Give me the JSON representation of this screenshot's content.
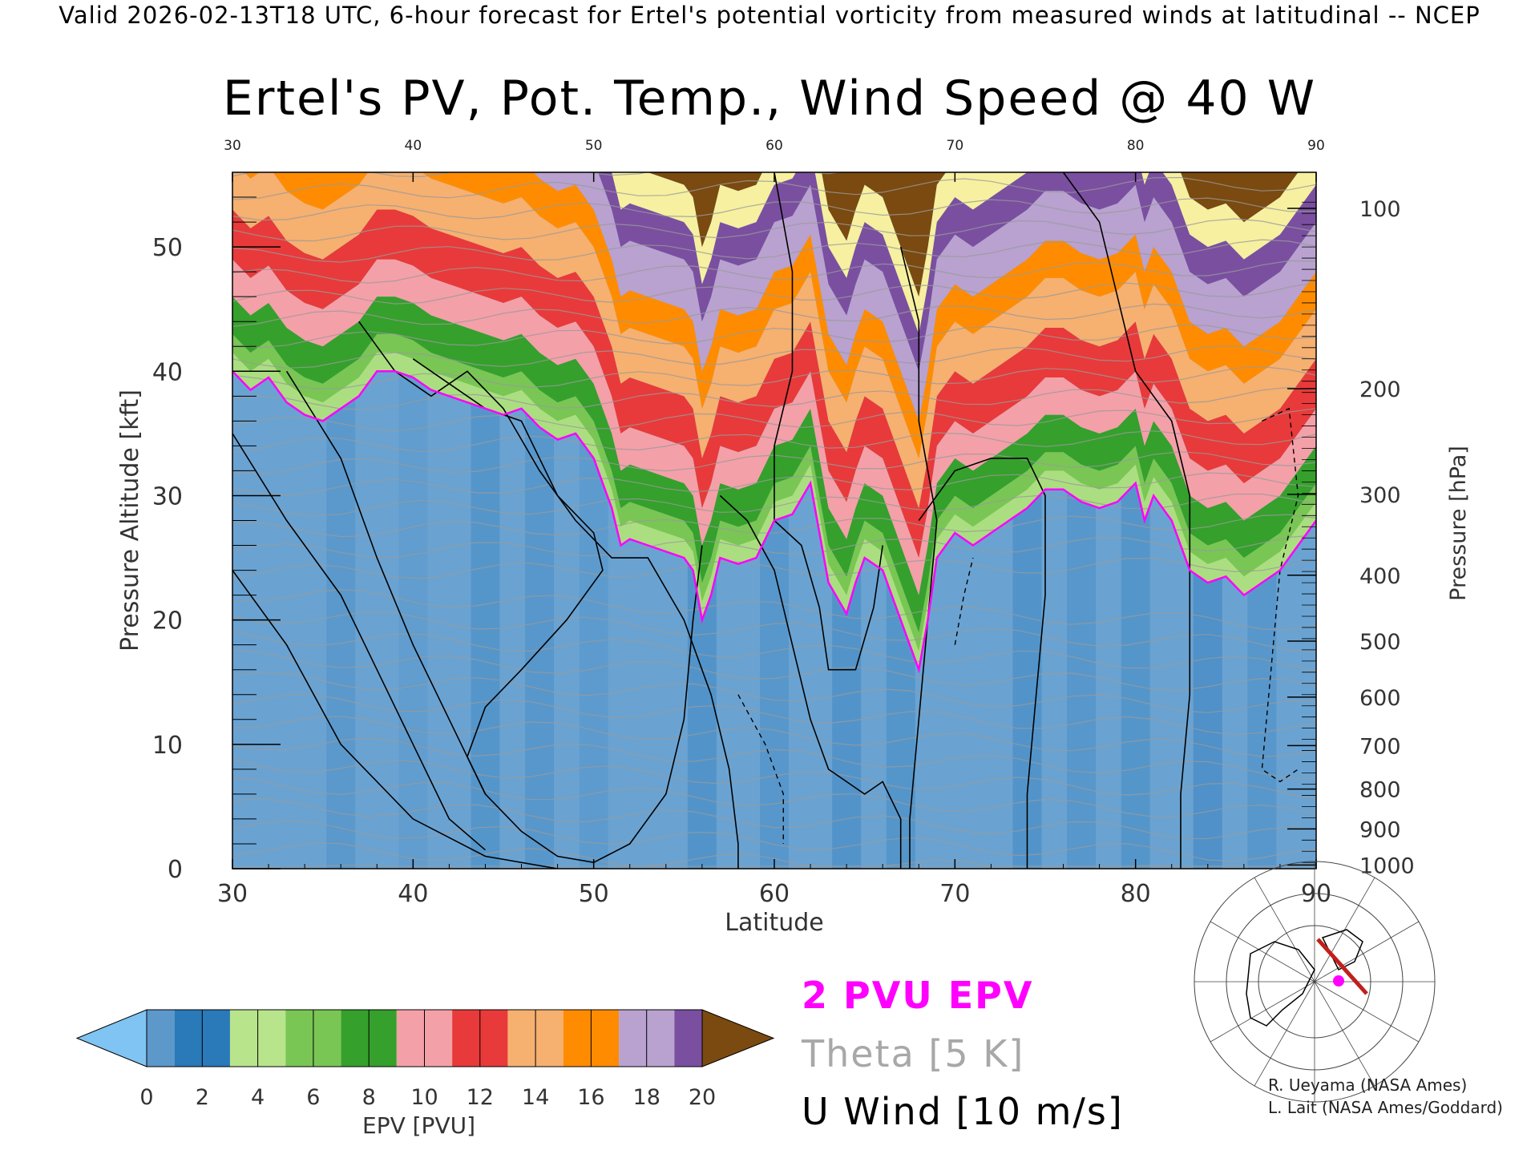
{
  "header": {
    "valid_line": "Valid 2026-02-13T18 UTC, 6-hour forecast for Ertel's potential vorticity from measured winds at latitudinal -- NCEP",
    "title": "Ertel's PV, Pot. Temp., Wind Speed @ 40 W"
  },
  "chart_data": {
    "type": "heatmap",
    "title": "Ertel's PV, Pot. Temp., Wind Speed @ 40 W",
    "xlabel": "Latitude",
    "ylabel_left": "Pressure Altitude [kft]",
    "ylabel_right": "Pressure [hPa]",
    "xlim": [
      30,
      90
    ],
    "ylim": [
      0,
      56
    ],
    "x_ticks": [
      "30",
      "40",
      "50",
      "60",
      "70",
      "80",
      "90"
    ],
    "y_ticks": [
      "0",
      "10",
      "20",
      "30",
      "40",
      "50"
    ],
    "pressure_ticks": [
      {
        "label": "100",
        "kft": 53.1
      },
      {
        "label": "200",
        "kft": 38.6
      },
      {
        "label": "300",
        "kft": 30.1
      },
      {
        "label": "400",
        "kft": 23.6
      },
      {
        "label": "500",
        "kft": 18.3
      },
      {
        "label": "600",
        "kft": 13.8
      },
      {
        "label": "700",
        "kft": 9.9
      },
      {
        "label": "800",
        "kft": 6.4
      },
      {
        "label": "900",
        "kft": 3.2
      },
      {
        "label": "1000",
        "kft": 0.3
      }
    ],
    "grid": false,
    "tropopause_2pvu_kft": [
      [
        30,
        40
      ],
      [
        31,
        38.5
      ],
      [
        32,
        39.5
      ],
      [
        33,
        37.5
      ],
      [
        34,
        36.5
      ],
      [
        35,
        36
      ],
      [
        36,
        37
      ],
      [
        37,
        38
      ],
      [
        38,
        40
      ],
      [
        39,
        40
      ],
      [
        40,
        39.5
      ],
      [
        41,
        38.5
      ],
      [
        42,
        38
      ],
      [
        43,
        37.5
      ],
      [
        44,
        37
      ],
      [
        45,
        36.5
      ],
      [
        46,
        37
      ],
      [
        47,
        35.5
      ],
      [
        48,
        34.5
      ],
      [
        49,
        35
      ],
      [
        50,
        33
      ],
      [
        50.5,
        31
      ],
      [
        51,
        29
      ],
      [
        51.5,
        26
      ],
      [
        52,
        26.5
      ],
      [
        53,
        26
      ],
      [
        54,
        25.5
      ],
      [
        55,
        25
      ],
      [
        55.5,
        24
      ],
      [
        56,
        20
      ],
      [
        56.5,
        22
      ],
      [
        57,
        25
      ],
      [
        58,
        24.5
      ],
      [
        59,
        25
      ],
      [
        60,
        28
      ],
      [
        61,
        28.5
      ],
      [
        62,
        31
      ],
      [
        62.5,
        27
      ],
      [
        63,
        23
      ],
      [
        64,
        20.5
      ],
      [
        64.5,
        23
      ],
      [
        65,
        25
      ],
      [
        66,
        24
      ],
      [
        67,
        20
      ],
      [
        67.5,
        18
      ],
      [
        68,
        16
      ],
      [
        68.5,
        20
      ],
      [
        69,
        25
      ],
      [
        70,
        27
      ],
      [
        71,
        26
      ],
      [
        72,
        27
      ],
      [
        73,
        28
      ],
      [
        74,
        29
      ],
      [
        75,
        30.5
      ],
      [
        76,
        30.5
      ],
      [
        77,
        29.5
      ],
      [
        78,
        29
      ],
      [
        79,
        29.5
      ],
      [
        80,
        31
      ],
      [
        80.5,
        28
      ],
      [
        81,
        30
      ],
      [
        82,
        28
      ],
      [
        83,
        24
      ],
      [
        84,
        23
      ],
      [
        85,
        23.5
      ],
      [
        86,
        22
      ],
      [
        87,
        23
      ],
      [
        88,
        24
      ],
      [
        89,
        26
      ],
      [
        90,
        28
      ]
    ],
    "wind_contours_m_s": [
      "0",
      "10",
      "30",
      "50"
    ],
    "colorbar": {
      "label": "EPV [PVU]",
      "ticks": [
        "0",
        "2",
        "4",
        "6",
        "8",
        "10",
        "12",
        "14",
        "16",
        "18",
        "20"
      ],
      "colors": [
        "#5d98cb",
        "#2a79b8",
        "#b8e48c",
        "#79c654",
        "#35a02c",
        "#f4a0a8",
        "#e83a3a",
        "#f6b070",
        "#ff8c00",
        "#b9a2cf",
        "#7a4fa0",
        "#f6f0a0",
        "#7a4a10"
      ],
      "under_color": "#7fc4f2",
      "over_color": "#7a4a10"
    }
  },
  "legend": {
    "epv": "2 PVU EPV",
    "theta": "Theta [5 K]",
    "wind": "U Wind [10 m/s]",
    "epv_color": "#ff00ff",
    "theta_color": "#a8a8a8",
    "wind_color": "#000000"
  },
  "credits": {
    "line1": "R. Ueyama (NASA Ames)",
    "line2": "L. Lait (NASA Ames/Goddard)"
  },
  "inset_map": {
    "icon": "polar-map-icon",
    "path_color": "#c0201c",
    "marker_color": "#ff00ff"
  }
}
